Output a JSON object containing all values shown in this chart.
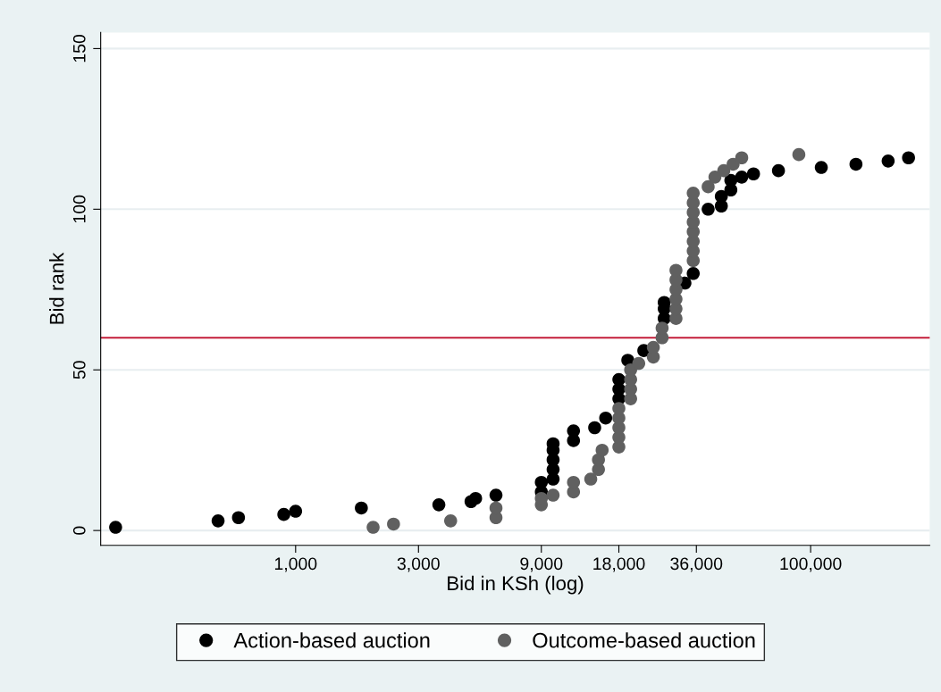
{
  "chart_data": {
    "type": "scatter",
    "xlabel": "Bid in KSh (log)",
    "ylabel": "Bid rank",
    "log": "x",
    "xlim": [
      175,
      290000
    ],
    "xticks": [
      {
        "value": 1000,
        "label": "1,000"
      },
      {
        "value": 3000,
        "label": "3,000"
      },
      {
        "value": 9000,
        "label": "9,000"
      },
      {
        "value": 18000,
        "label": "18,000"
      },
      {
        "value": 36000,
        "label": "36,000"
      },
      {
        "value": 100000,
        "label": "100,000"
      }
    ],
    "ylim": [
      -4.6,
      155
    ],
    "yticks": [
      0,
      50,
      100,
      150
    ],
    "grid": "y",
    "legend": "bottom",
    "marker": "circle",
    "ref_lines": [
      {
        "axis": "y",
        "value": 60,
        "label": null,
        "color": "#c41e3a"
      }
    ],
    "series": [
      {
        "name": "Action-based auction",
        "color": "#000000",
        "x": [
          200,
          500,
          600,
          900,
          1000,
          1800,
          3600,
          4800,
          5000,
          6000,
          9000,
          9000,
          10000,
          10000,
          10000,
          10000,
          10000,
          12000,
          12000,
          14500,
          16000,
          18000,
          18000,
          18000,
          19500,
          22500,
          27000,
          27000,
          27000,
          32500,
          35000,
          40000,
          45000,
          45000,
          49000,
          49000,
          54000,
          60000,
          75000,
          110000,
          150000,
          200000,
          240000
        ],
        "values": [
          1,
          3,
          4,
          5,
          6,
          7,
          8,
          9,
          10,
          11,
          12,
          15,
          16,
          19,
          22,
          25,
          27,
          28,
          31,
          32,
          35,
          41,
          44,
          47,
          53,
          56,
          66,
          69,
          71,
          77,
          80,
          100,
          101,
          104,
          106,
          109,
          110,
          111,
          112,
          113,
          114,
          115,
          116
        ]
      },
      {
        "name": "Outcome-based auction",
        "color": "#606060",
        "x": [
          2000,
          2400,
          4000,
          6000,
          6000,
          9000,
          9000,
          10000,
          12000,
          12000,
          14000,
          15000,
          15000,
          15500,
          18000,
          18000,
          18000,
          18000,
          18000,
          20000,
          20000,
          20000,
          20000,
          21500,
          24500,
          24500,
          26500,
          26500,
          30000,
          30000,
          30000,
          30000,
          30000,
          30000,
          35000,
          35000,
          35000,
          35000,
          35000,
          35000,
          35000,
          35000,
          40000,
          42500,
          46000,
          50000,
          54000,
          90000
        ],
        "values": [
          1,
          2,
          3,
          4,
          7,
          8,
          10,
          11,
          12,
          15,
          16,
          19,
          22,
          25,
          26,
          29,
          32,
          35,
          38,
          41,
          44,
          47,
          50,
          52,
          54,
          57,
          60,
          63,
          66,
          69,
          72,
          75,
          78,
          81,
          84,
          87,
          90,
          93,
          96,
          99,
          102,
          105,
          107,
          110,
          112,
          114,
          116,
          117
        ]
      }
    ]
  }
}
